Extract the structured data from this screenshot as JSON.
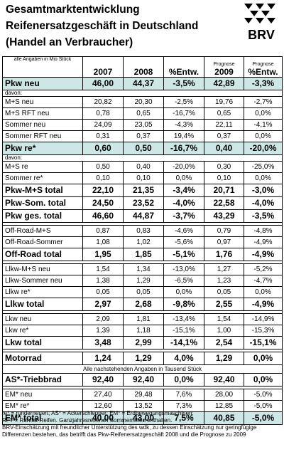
{
  "title_lines": [
    "Gesamtmarktentwicklung",
    "Reifenersatzgeschäft in Deutschland",
    "(Handel an Verbraucher)"
  ],
  "logo_text": "BRV",
  "header": {
    "unit_note": "alle Angaben in Mio Stück",
    "col_2007": "2007",
    "col_2008": "2008",
    "col_entw": "%Entw.",
    "prognose_label": "Prognose",
    "col_2009": "2009",
    "col_entw2": "%Entw."
  },
  "rows": [
    {
      "label": "Pkw neu",
      "v2007": "46,00",
      "v2008": "44,37",
      "entw": "-3,5%",
      "v2009": "42,89",
      "entw2": "-3,3%"
    },
    {
      "label": "davon:"
    },
    {
      "label": "M+S neu",
      "v2007": "20,82",
      "v2008": "20,30",
      "entw": "-2,5%",
      "v2009": "19,76",
      "entw2": "-2,7%"
    },
    {
      "label": "M+S RFT neu",
      "v2007": "0,78",
      "v2008": "0,65",
      "entw": "-16,7%",
      "v2009": "0,65",
      "entw2": "0,0%"
    },
    {
      "label": "Sommer neu",
      "v2007": "24,09",
      "v2008": "23,05",
      "entw": "-4,3%",
      "v2009": "22,11",
      "entw2": "-4,1%"
    },
    {
      "label": "Sommer RFT neu",
      "v2007": "0,31",
      "v2008": "0,37",
      "entw": "19,4%",
      "v2009": "0,37",
      "entw2": "0,0%"
    },
    {
      "label": "Pkw re*",
      "v2007": "0,60",
      "v2008": "0,50",
      "entw": "-16,7%",
      "v2009": "0,40",
      "entw2": "-20,0%"
    },
    {
      "label": "davon:"
    },
    {
      "label": "M+S re",
      "v2007": "0,50",
      "v2008": "0,40",
      "entw": "-20,0%",
      "v2009": "0,30",
      "entw2": "-25,0%"
    },
    {
      "label": "Sommer re*",
      "v2007": "0,10",
      "v2008": "0,10",
      "entw": "0,0%",
      "v2009": "0,10",
      "entw2": "0,0%"
    },
    {
      "label": "Pkw-M+S total",
      "v2007": "22,10",
      "v2008": "21,35",
      "entw": "-3,4%",
      "v2009": "20,71",
      "entw2": "-3,0%"
    },
    {
      "label": "Pkw-Som. total",
      "v2007": "24,50",
      "v2008": "23,52",
      "entw": "-4,0%",
      "v2009": "22,58",
      "entw2": "-4,0%"
    },
    {
      "label": "Pkw ges. total",
      "v2007": "46,60",
      "v2008": "44,87",
      "entw": "-3,7%",
      "v2009": "43,29",
      "entw2": "-3,5%"
    },
    {
      "label": "Off-Road-M+S",
      "v2007": "0,87",
      "v2008": "0,83",
      "entw": "-4,6%",
      "v2009": "0,79",
      "entw2": "-4,8%"
    },
    {
      "label": "Off-Road-Sommer",
      "v2007": "1,08",
      "v2008": "1,02",
      "entw": "-5,6%",
      "v2009": "0,97",
      "entw2": "-4,9%"
    },
    {
      "label": "Off-Road total",
      "v2007": "1,95",
      "v2008": "1,85",
      "entw": "-5,1%",
      "v2009": "1,76",
      "entw2": "-4,9%"
    },
    {
      "label": "Llkw-M+S neu",
      "v2007": "1,54",
      "v2008": "1,34",
      "entw": "-13,0%",
      "v2009": "1,27",
      "entw2": "-5,2%"
    },
    {
      "label": "Llkw-Sommer neu",
      "v2007": "1,38",
      "v2008": "1,29",
      "entw": "-6,5%",
      "v2009": "1,23",
      "entw2": "-4,7%"
    },
    {
      "label": "Llkw re*",
      "v2007": "0,05",
      "v2008": "0,05",
      "entw": "0,0%",
      "v2009": "0,05",
      "entw2": "0,0%"
    },
    {
      "label": "Llkw total",
      "v2007": "2,97",
      "v2008": "2,68",
      "entw": "-9,8%",
      "v2009": "2,55",
      "entw2": "-4,9%"
    },
    {
      "label": "Lkw neu",
      "v2007": "2,09",
      "v2008": "1,81",
      "entw": "-13,4%",
      "v2009": "1,54",
      "entw2": "-14,9%"
    },
    {
      "label": "Lkw re*",
      "v2007": "1,39",
      "v2008": "1,18",
      "entw": "-15,1%",
      "v2009": "1,00",
      "entw2": "-15,3%"
    },
    {
      "label": "Lkw total",
      "v2007": "3,48",
      "v2008": "2,99",
      "entw": "-14,1%",
      "v2009": "2,54",
      "entw2": "-15,1%"
    },
    {
      "label": "Motorrad",
      "v2007": "1,24",
      "v2008": "1,29",
      "entw": "4,0%",
      "v2009": "1,29",
      "entw2": "0,0%"
    },
    {
      "label": "Alle nachstehenden Angaben in Tausend Stück"
    },
    {
      "label": "AS*-Triebbrad",
      "v2007": "92,40",
      "v2008": "92,40",
      "entw": "0,0%",
      "v2009": "92,40",
      "entw2": "0,0%"
    },
    {
      "label": "EM* neu",
      "v2007": "27,40",
      "v2008": "29,48",
      "entw": "7,6%",
      "v2009": "28,00",
      "entw2": "-5,0%"
    },
    {
      "label": "EM* re*",
      "v2007": "12,60",
      "v2008": "13,52",
      "entw": "7,3%",
      "v2009": "12,85",
      "entw2": "-5,0%"
    },
    {
      "label": "EM* total",
      "v2007": "40,00",
      "v2008": "43,00",
      "entw": "7,5%",
      "v2009": "40,85",
      "entw2": "-5,0%"
    }
  ],
  "footnotes": [
    "re* = runderneuert; AS* = Ackerschlepper; EM* = Erdbewegungsmaschinen;",
    "RFT = Runflat-Reifen. Ganzjahresreifen in Sommerreifen enthalten.",
    "BRV-Einschätzung mit freundlicher Unterstützung des wdk, zu dessen Einschätzung nur geringfügige Differenzen bestehen, das betrifft das Pkw-Reifenersatzgeschäft 2008 und die Prognose zu 2009"
  ],
  "colors": {
    "highlight_row": "#cde6e6"
  }
}
